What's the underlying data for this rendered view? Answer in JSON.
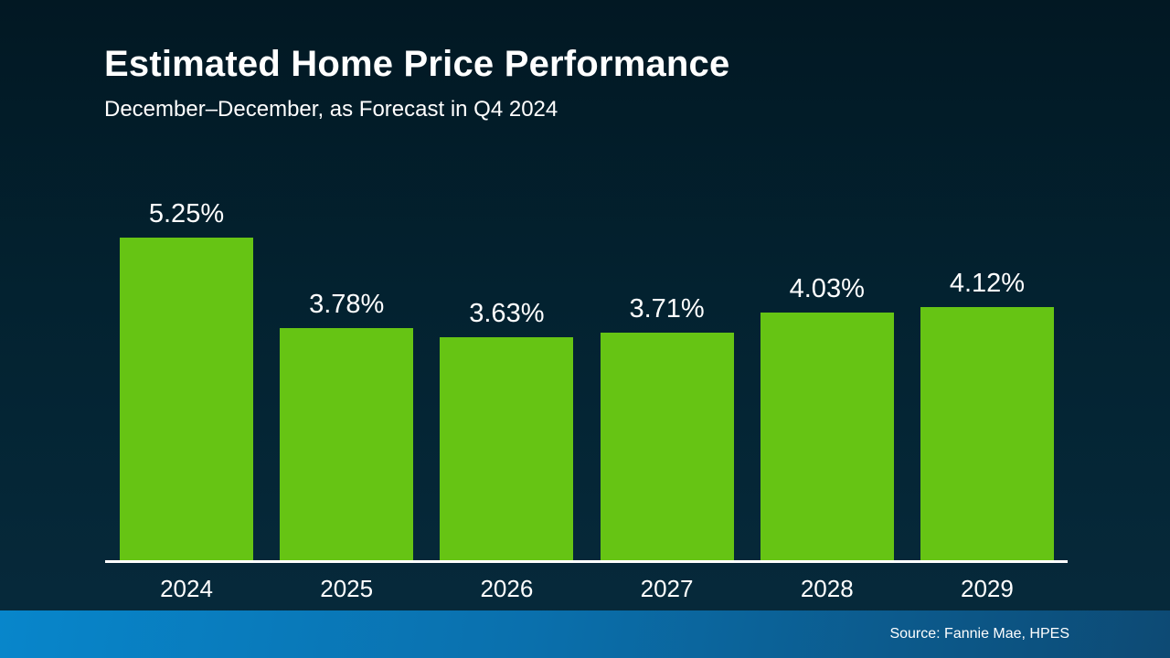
{
  "slide": {
    "title": "Estimated Home Price Performance",
    "subtitle": "December–December, as Forecast in Q4 2024",
    "source": "Source: Fannie Mae, HPES"
  },
  "chart_data": {
    "type": "bar",
    "title": "Estimated Home Price Performance",
    "subtitle": "December–December, as Forecast in Q4 2024",
    "categories": [
      "2024",
      "2025",
      "2026",
      "2027",
      "2028",
      "2029"
    ],
    "values": [
      5.25,
      3.78,
      3.63,
      3.71,
      4.03,
      4.12
    ],
    "data_labels": [
      "5.25%",
      "3.78%",
      "3.63%",
      "3.71%",
      "4.03%",
      "4.12%"
    ],
    "xlabel": "",
    "ylabel": "",
    "ylim": [
      0,
      5.5
    ],
    "grid": false,
    "legend_position": "none",
    "bar_color": "#66C414",
    "axis_line_color": "#FFFFFF",
    "label_color": "#FFFFFF",
    "source_note": "Source: Fannie Mae, HPES"
  },
  "colors": {
    "background_top": "#021823",
    "background_bottom": "#06293A",
    "footer_left": "#0886CB",
    "footer_right": "#0D4A74",
    "text": "#FFFFFF"
  }
}
